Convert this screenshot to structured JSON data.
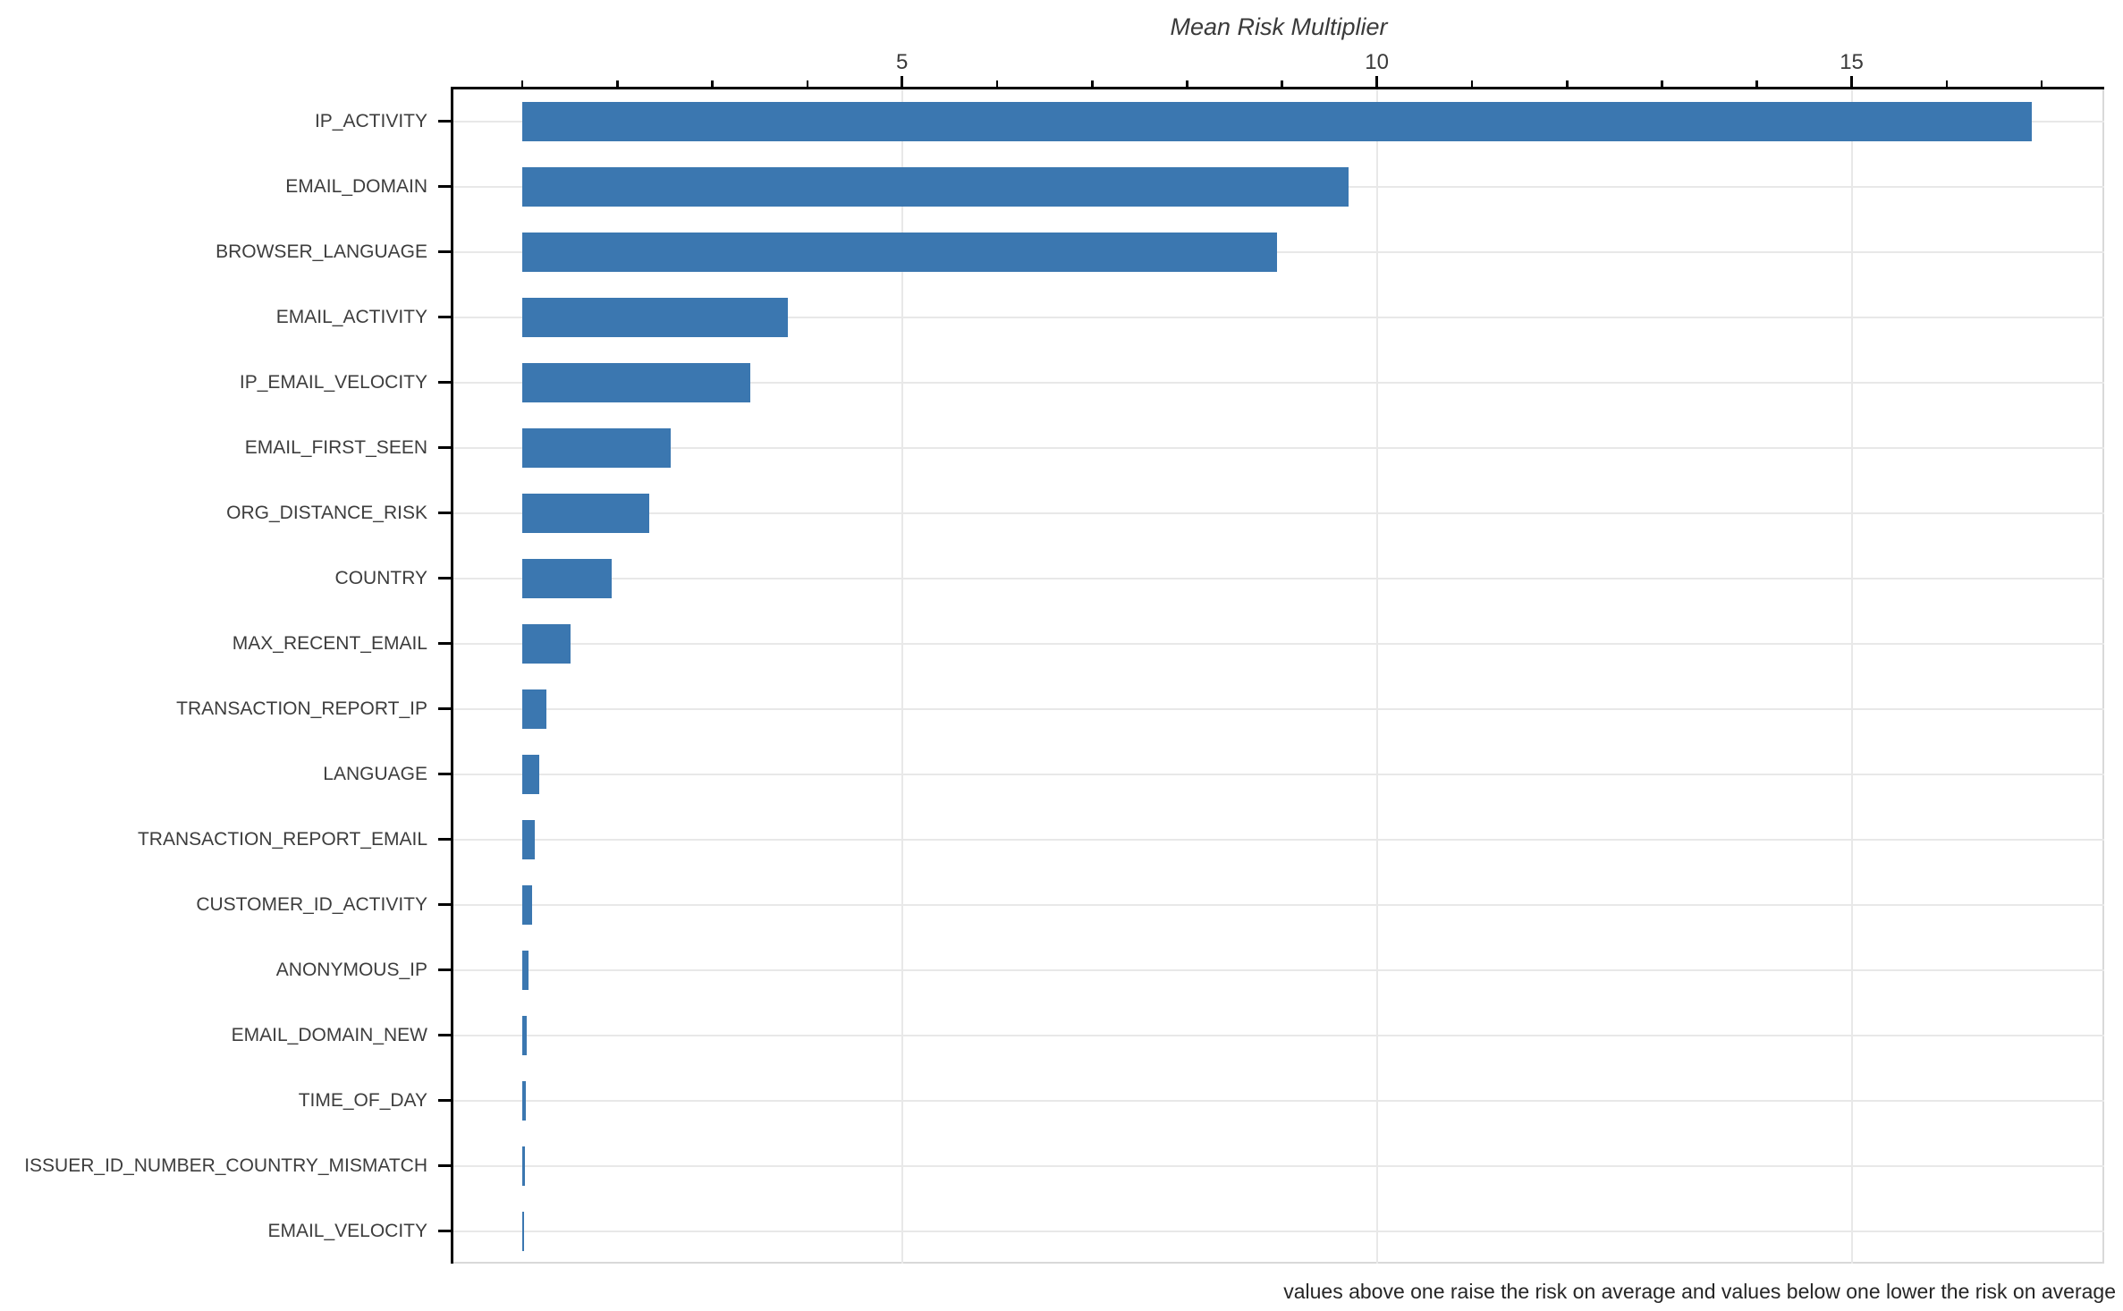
{
  "chart_data": {
    "type": "bar",
    "orientation": "horizontal",
    "title": "Mean Risk Multiplier",
    "categories": [
      "IP_ACTIVITY",
      "EMAIL_DOMAIN",
      "BROWSER_LANGUAGE",
      "EMAIL_ACTIVITY",
      "IP_EMAIL_VELOCITY",
      "EMAIL_FIRST_SEEN",
      "ORG_DISTANCE_RISK",
      "COUNTRY",
      "MAX_RECENT_EMAIL",
      "TRANSACTION_REPORT_IP",
      "LANGUAGE",
      "TRANSACTION_REPORT_EMAIL",
      "CUSTOMER_ID_ACTIVITY",
      "ANONYMOUS_IP",
      "EMAIL_DOMAIN_NEW",
      "TIME_OF_DAY",
      "ISSUER_ID_NUMBER_COUNTRY_MISMATCH",
      "EMAIL_VELOCITY"
    ],
    "values": [
      16.9,
      9.7,
      8.95,
      3.8,
      3.4,
      2.56,
      2.34,
      1.94,
      1.51,
      1.25,
      1.18,
      1.13,
      1.1,
      1.07,
      1.05,
      1.04,
      1.03,
      1.02
    ],
    "bar_base": 1,
    "xlabel": "",
    "ylabel": "",
    "xlim": [
      0.275,
      17.66
    ],
    "xticks_major": [
      5,
      10,
      15
    ],
    "xticks_minor": [
      1,
      2,
      3,
      4,
      6,
      7,
      8,
      9,
      11,
      12,
      13,
      14,
      16,
      17
    ],
    "grid": true,
    "legend": "none",
    "bar_color": "#3b77b0",
    "note": "values above one raise the risk on average and values below one lower the risk on average"
  }
}
